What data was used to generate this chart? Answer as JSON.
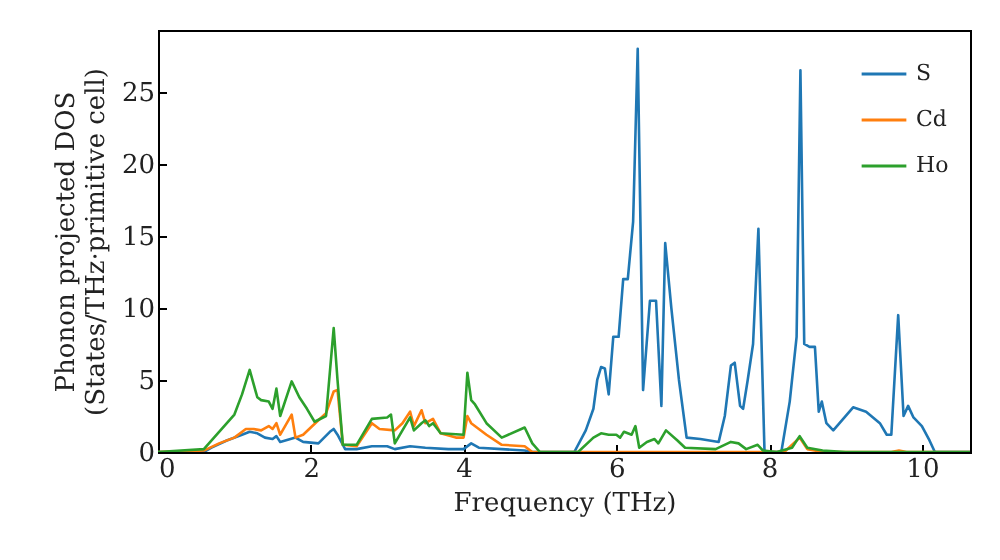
{
  "chart_data": {
    "type": "line",
    "xlabel": "Frequency (THz)",
    "ylabel": "Phonon projected DOS\n(States/THz·primitive cell)",
    "xlim": [
      0,
      10.63
    ],
    "ylim": [
      0,
      29.3
    ],
    "xticks": [
      0,
      2,
      4,
      6,
      8,
      10
    ],
    "yticks": [
      0,
      5,
      10,
      15,
      20,
      25
    ],
    "grid": false,
    "legend": "top right",
    "marker": "none",
    "line_style": "solid",
    "series": [
      {
        "name": "S",
        "color": "#1f77b4",
        "x": [
          0,
          0.6,
          0.7,
          0.9,
          1.1,
          1.2,
          1.3,
          1.4,
          1.5,
          1.55,
          1.6,
          1.8,
          1.9,
          2.1,
          2.25,
          2.3,
          2.35,
          2.45,
          2.6,
          2.8,
          3.0,
          3.1,
          3.3,
          3.5,
          3.8,
          4.0,
          4.1,
          4.2,
          4.5,
          4.8,
          4.9,
          5.45,
          5.6,
          5.7,
          5.75,
          5.8,
          5.85,
          5.9,
          5.96,
          6.03,
          6.09,
          6.15,
          6.22,
          6.28,
          6.35,
          6.44,
          6.52,
          6.59,
          6.64,
          6.72,
          6.82,
          6.92,
          7.1,
          7.34,
          7.42,
          7.5,
          7.55,
          7.62,
          7.66,
          7.72,
          7.79,
          7.86,
          7.94,
          8.16,
          8.27,
          8.36,
          8.41,
          8.46,
          8.53,
          8.6,
          8.65,
          8.69,
          8.75,
          8.84,
          9.1,
          9.27,
          9.45,
          9.54,
          9.6,
          9.69,
          9.76,
          9.82,
          9.89,
          10.0,
          10.1,
          10.17,
          10.63
        ],
        "values": [
          0,
          0,
          0.3,
          0.8,
          1.2,
          1.4,
          1.3,
          1.0,
          0.9,
          1.1,
          0.7,
          1.0,
          0.7,
          0.6,
          1.4,
          1.6,
          1.2,
          0.2,
          0.2,
          0.4,
          0.4,
          0.2,
          0.4,
          0.3,
          0.2,
          0.2,
          0.6,
          0.3,
          0.2,
          0.1,
          0,
          0,
          1.5,
          3,
          5,
          5.9,
          5.8,
          4.0,
          8,
          8,
          12,
          12,
          16,
          28,
          4.3,
          10.5,
          10.5,
          3.2,
          14.5,
          10,
          5,
          1.0,
          0.9,
          0.7,
          2.5,
          6,
          6.2,
          3.2,
          3.0,
          5,
          7.5,
          15.5,
          0,
          0,
          3.5,
          8,
          26.5,
          7.5,
          7.3,
          7.3,
          2.8,
          3.5,
          2,
          1.5,
          3.1,
          2.8,
          2,
          1.2,
          1.2,
          9.5,
          2.5,
          3.2,
          2.4,
          1.8,
          0.8,
          0,
          0
        ]
      },
      {
        "name": "Cd",
        "color": "#ff7f0e",
        "x": [
          0,
          0.6,
          0.8,
          1.0,
          1.15,
          1.25,
          1.35,
          1.45,
          1.5,
          1.55,
          1.6,
          1.75,
          1.8,
          1.9,
          2.1,
          2.2,
          2.3,
          2.35,
          2.42,
          2.6,
          2.8,
          2.9,
          3.1,
          3.2,
          3.3,
          3.35,
          3.45,
          3.5,
          3.6,
          3.7,
          3.9,
          4.0,
          4.05,
          4.1,
          4.3,
          4.5,
          4.8,
          4.9,
          8.2,
          8.4,
          8.5,
          8.7,
          9.6,
          9.7,
          9.8,
          10.63
        ],
        "values": [
          0,
          0.1,
          0.6,
          1.0,
          1.6,
          1.6,
          1.5,
          1.8,
          1.6,
          2.0,
          1.2,
          2.6,
          1.0,
          1.2,
          2.2,
          2.7,
          4.2,
          4.3,
          0.5,
          0.4,
          2.0,
          1.6,
          1.5,
          2.0,
          2.8,
          1.8,
          2.9,
          2.0,
          2.3,
          1.3,
          1.0,
          1.0,
          2.5,
          2.0,
          1.2,
          0.5,
          0.4,
          0,
          0,
          1.0,
          0.2,
          0,
          0,
          0.1,
          0,
          0
        ]
      },
      {
        "name": "Ho",
        "color": "#2ca02c",
        "x": [
          0,
          0.6,
          0.8,
          1.0,
          1.1,
          1.2,
          1.3,
          1.35,
          1.45,
          1.5,
          1.55,
          1.6,
          1.75,
          1.85,
          1.95,
          2.05,
          2.2,
          2.3,
          2.35,
          2.42,
          2.6,
          2.8,
          3.0,
          3.05,
          3.1,
          3.2,
          3.3,
          3.35,
          3.45,
          3.5,
          3.55,
          3.6,
          3.7,
          4.0,
          4.05,
          4.1,
          4.15,
          4.3,
          4.5,
          4.8,
          4.9,
          5.0,
          5.5,
          5.7,
          5.8,
          5.9,
          6.0,
          6.05,
          6.1,
          6.2,
          6.25,
          6.3,
          6.4,
          6.5,
          6.55,
          6.65,
          6.8,
          6.9,
          7.3,
          7.5,
          7.6,
          7.7,
          7.85,
          7.92,
          8.1,
          8.3,
          8.4,
          8.5,
          8.7,
          9.0,
          10.63
        ],
        "values": [
          0,
          0.2,
          1.4,
          2.6,
          4.0,
          5.7,
          3.8,
          3.6,
          3.5,
          3.0,
          4.4,
          2.5,
          4.9,
          3.8,
          3.0,
          2.1,
          2.5,
          8.6,
          5,
          0.5,
          0.5,
          2.3,
          2.4,
          2.6,
          0.6,
          1.5,
          2.4,
          1.5,
          2.0,
          2.2,
          1.8,
          2.0,
          1.3,
          1.2,
          5.5,
          3.6,
          3.3,
          2.0,
          1.0,
          1.7,
          0.6,
          0,
          0,
          1.0,
          1.3,
          1.2,
          1.2,
          1.0,
          1.4,
          1.2,
          1.8,
          0.3,
          0.7,
          0.9,
          0.6,
          1.5,
          0.8,
          0.3,
          0.2,
          0.7,
          0.6,
          0.2,
          0.5,
          0.1,
          0,
          0.3,
          1.1,
          0.3,
          0.1,
          0,
          0
        ]
      }
    ]
  }
}
